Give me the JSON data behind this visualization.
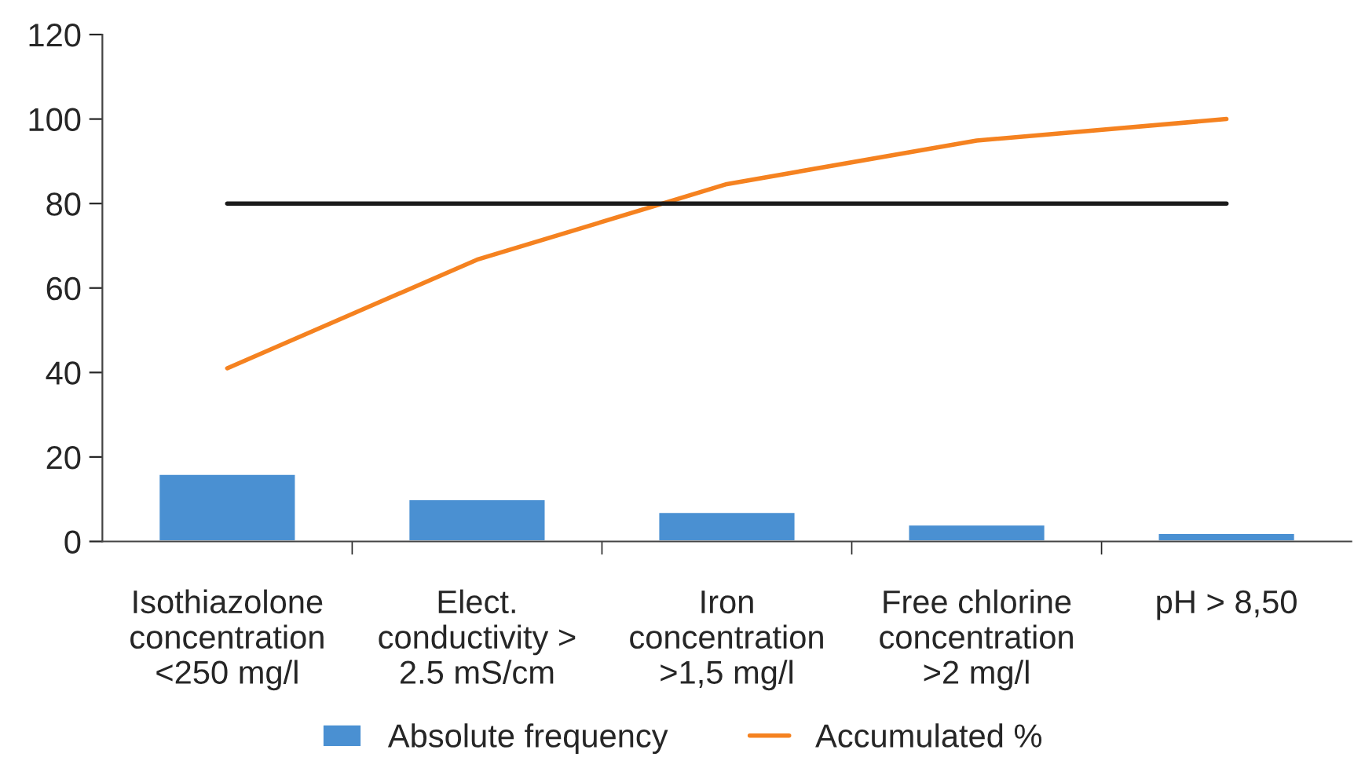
{
  "chart_data": {
    "type": "bar",
    "categories": [
      "Isothiazolone\nconcentration\n<250 mg/l",
      "Elect.\nconductivity >\n2.5 mS/cm",
      "Iron\nconcentration\n>1,5 mg/l",
      "Free chlorine\nconcentration\n>2 mg/l",
      "pH > 8,50"
    ],
    "series": [
      {
        "name": "Absolute frequency",
        "color": "#4a90d2",
        "values": [
          16,
          10,
          7,
          4,
          2
        ]
      },
      {
        "name": "Accumulated %",
        "type": "line",
        "color": "#f58220",
        "values": [
          41.0,
          66.7,
          84.6,
          94.9,
          100
        ]
      },
      {
        "type": "line",
        "color": "#1a1a1a",
        "values": [
          80,
          80,
          80,
          80,
          80
        ]
      }
    ],
    "ylim": [
      0,
      120
    ],
    "yticks": [
      0,
      20,
      40,
      60,
      80,
      100,
      120
    ],
    "legend": "bottom",
    "marker": "none",
    "line_style": "solid"
  }
}
